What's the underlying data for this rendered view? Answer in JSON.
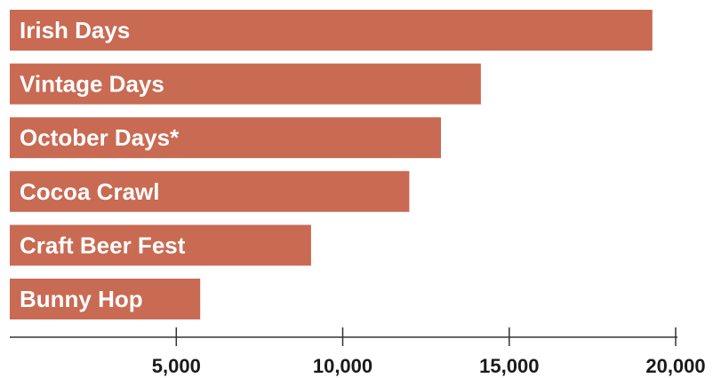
{
  "chart_data": {
    "type": "bar",
    "orientation": "horizontal",
    "categories": [
      "Irish Days",
      "Vintage Days",
      "October Days*",
      "Cocoa Crawl",
      "Craft Beer Fest",
      "Bunny Hop"
    ],
    "values": [
      19300,
      14150,
      12950,
      12000,
      9050,
      5720
    ],
    "x_ticks": [
      "5,000",
      "10,000",
      "15,000",
      "20,000"
    ],
    "x_tick_values": [
      5000,
      10000,
      15000,
      20000
    ],
    "xlim": [
      0,
      20000
    ],
    "title": "",
    "xlabel": "",
    "ylabel": "",
    "bar_color": "#c96a53",
    "axis_color": "#333333",
    "grid": false,
    "legend": "none",
    "labels_inside_bars": true
  }
}
